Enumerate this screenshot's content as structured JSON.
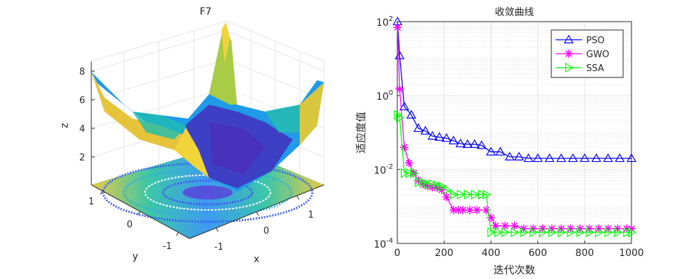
{
  "chart_data": [
    {
      "type": "surface3d",
      "title": "F7",
      "xlabel": "x",
      "ylabel": "y",
      "zlabel": "z",
      "x_ticks": [
        "-1",
        "0",
        "1"
      ],
      "y_ticks": [
        "-1",
        "0",
        "1"
      ],
      "z_ticks": [
        "2",
        "4",
        "6",
        "8"
      ],
      "zlim": [
        0.5,
        8.5
      ],
      "colormap": [
        "#3e26a8",
        "#4056f5",
        "#2f86f0",
        "#16aed9",
        "#25c29b",
        "#8ccb53",
        "#e8c230",
        "#f9e021"
      ]
    },
    {
      "type": "line",
      "title": "收敛曲线",
      "xlabel": "迭代次数",
      "ylabel": "适应度值",
      "xlim": [
        0,
        1000
      ],
      "ylim_log10": [
        -4,
        2
      ],
      "x_ticks": [
        "0",
        "200",
        "400",
        "600",
        "800",
        "1000"
      ],
      "y_ticks": [
        {
          "base": "10",
          "exp": "2",
          "value": 2
        },
        {
          "base": "10",
          "exp": "0",
          "value": 0
        },
        {
          "base": "10",
          "exp": "-2",
          "value": -2
        },
        {
          "base": "10",
          "exp": "-4",
          "value": -4
        }
      ],
      "legend_position": "top-right",
      "series": [
        {
          "name": "PSO",
          "color": "#0000ff",
          "marker": "triangle-up",
          "points": [
            [
              1,
              100
            ],
            [
              10,
              12
            ],
            [
              30,
              0.5
            ],
            [
              60,
              0.3
            ],
            [
              90,
              0.13
            ],
            [
              120,
              0.11
            ],
            [
              150,
              0.08
            ],
            [
              180,
              0.075
            ],
            [
              210,
              0.07
            ],
            [
              240,
              0.06
            ],
            [
              270,
              0.05
            ],
            [
              300,
              0.048
            ],
            [
              330,
              0.048
            ],
            [
              360,
              0.045
            ],
            [
              400,
              0.03
            ],
            [
              440,
              0.03
            ],
            [
              480,
              0.022
            ],
            [
              520,
              0.022
            ],
            [
              560,
              0.02
            ],
            [
              600,
              0.02
            ],
            [
              650,
              0.02
            ],
            [
              700,
              0.02
            ],
            [
              750,
              0.02
            ],
            [
              800,
              0.02
            ],
            [
              850,
              0.02
            ],
            [
              900,
              0.02
            ],
            [
              950,
              0.02
            ],
            [
              1000,
              0.02
            ]
          ]
        },
        {
          "name": "GWO",
          "color": "#ff00ff",
          "marker": "asterisk",
          "points": [
            [
              1,
              70
            ],
            [
              10,
              1.5
            ],
            [
              30,
              0.04
            ],
            [
              50,
              0.015
            ],
            [
              70,
              0.008
            ],
            [
              90,
              0.005
            ],
            [
              110,
              0.004
            ],
            [
              130,
              0.0035
            ],
            [
              150,
              0.0033
            ],
            [
              170,
              0.0032
            ],
            [
              190,
              0.0028
            ],
            [
              210,
              0.0018
            ],
            [
              240,
              0.0008
            ],
            [
              260,
              0.0008
            ],
            [
              280,
              0.0008
            ],
            [
              310,
              0.0008
            ],
            [
              340,
              0.0008
            ],
            [
              380,
              0.0008
            ],
            [
              400,
              0.0005
            ],
            [
              420,
              0.0003
            ],
            [
              460,
              0.0003
            ],
            [
              500,
              0.0003
            ],
            [
              540,
              0.00025
            ],
            [
              580,
              0.00025
            ],
            [
              620,
              0.00025
            ],
            [
              660,
              0.00025
            ],
            [
              700,
              0.00025
            ],
            [
              740,
              0.00025
            ],
            [
              780,
              0.00025
            ],
            [
              820,
              0.00025
            ],
            [
              860,
              0.00025
            ],
            [
              900,
              0.00025
            ],
            [
              940,
              0.00025
            ],
            [
              980,
              0.00025
            ],
            [
              1000,
              0.00025
            ]
          ]
        },
        {
          "name": "SSA",
          "color": "#00ff00",
          "marker": "triangle-right",
          "points": [
            [
              1,
              0.3
            ],
            [
              10,
              0.25
            ],
            [
              30,
              0.008
            ],
            [
              50,
              0.008
            ],
            [
              70,
              0.008
            ],
            [
              90,
              0.0045
            ],
            [
              110,
              0.0045
            ],
            [
              130,
              0.004
            ],
            [
              150,
              0.004
            ],
            [
              170,
              0.0037
            ],
            [
              190,
              0.0035
            ],
            [
              210,
              0.0028
            ],
            [
              240,
              0.0021
            ],
            [
              270,
              0.0021
            ],
            [
              300,
              0.0021
            ],
            [
              330,
              0.0021
            ],
            [
              360,
              0.0021
            ],
            [
              380,
              0.0021
            ],
            [
              400,
              0.0002
            ],
            [
              430,
              0.0002
            ],
            [
              460,
              0.0002
            ],
            [
              500,
              0.0002
            ],
            [
              540,
              0.0002
            ],
            [
              580,
              0.0002
            ],
            [
              620,
              0.0002
            ],
            [
              660,
              0.0002
            ],
            [
              700,
              0.0002
            ],
            [
              740,
              0.0002
            ],
            [
              780,
              0.0002
            ],
            [
              820,
              0.0002
            ],
            [
              860,
              0.0002
            ],
            [
              900,
              0.0002
            ],
            [
              940,
              0.0002
            ],
            [
              980,
              0.0002
            ],
            [
              1000,
              0.0002
            ]
          ]
        }
      ]
    }
  ]
}
